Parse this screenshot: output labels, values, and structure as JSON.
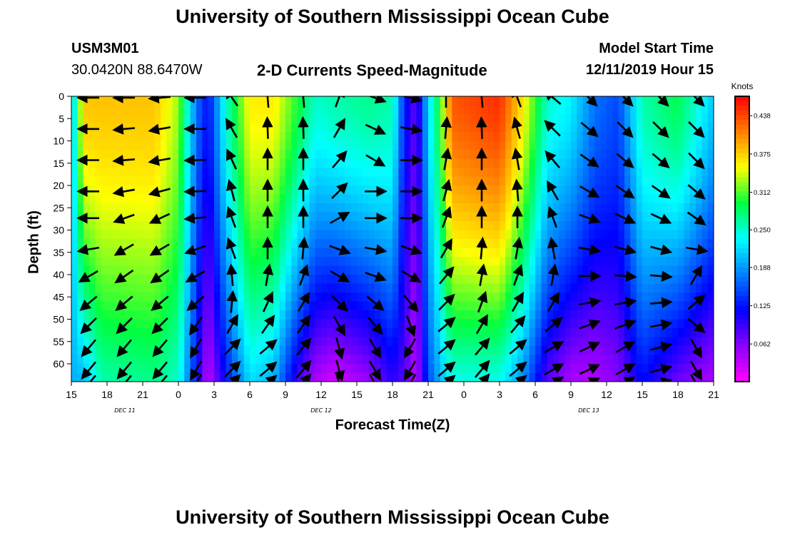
{
  "header": {
    "title": "University of Southern Mississippi Ocean Cube",
    "station_id": "USM3M01",
    "coordinates": "30.0420N 88.6470W",
    "subtitle": "2-D Currents Speed-Magnitude",
    "model_start_label": "Model Start Time",
    "model_start_value": "12/11/2019 Hour 15"
  },
  "footer": {
    "title": "University of Southern Mississippi Ocean Cube"
  },
  "chart_data": {
    "type": "heatmap",
    "title": "2-D Currents Speed-Magnitude",
    "xlabel": "Forecast Time(Z)",
    "ylabel": "Depth (ft)",
    "x_tick_labels": [
      "15",
      "18",
      "21",
      "0",
      "3",
      "6",
      "9",
      "12",
      "15",
      "18",
      "21",
      "0",
      "3",
      "6",
      "9",
      "12",
      "15",
      "18",
      "21"
    ],
    "x_day_labels": [
      {
        "label": "DEC 11",
        "tick_index": 1.5
      },
      {
        "label": "DEC 12",
        "tick_index": 7
      },
      {
        "label": "DEC 13",
        "tick_index": 14.5
      }
    ],
    "y_ticks": [
      0,
      5,
      10,
      15,
      20,
      25,
      30,
      35,
      40,
      45,
      50,
      55,
      60
    ],
    "ylim": [
      0,
      64
    ],
    "colorbar": {
      "unit": "Knots",
      "ticks": [
        "0.438",
        "0.375",
        "0.312",
        "0.250",
        "0.188",
        "0.125",
        "0.062"
      ],
      "tick_values": [
        0.438,
        0.375,
        0.312,
        0.25,
        0.188,
        0.125,
        0.062
      ],
      "range": [
        0.0,
        0.47
      ],
      "colors": [
        "#ff00ff",
        "#8a00ff",
        "#0000ff",
        "#0080ff",
        "#00ffff",
        "#00ff40",
        "#ffff00",
        "#ff8000",
        "#ff0000"
      ]
    },
    "speed_model": {
      "x_range_hours": [
        0,
        54
      ],
      "column_profiles": [
        {
          "hour": 0,
          "surface": 0.2,
          "bottom": 0.2
        },
        {
          "hour": 1,
          "surface": 0.38,
          "bottom": 0.2
        },
        {
          "hour": 2.5,
          "surface": 0.38,
          "bottom": 0.26
        },
        {
          "hour": 7,
          "surface": 0.38,
          "bottom": 0.27
        },
        {
          "hour": 9,
          "surface": 0.33,
          "bottom": 0.25
        },
        {
          "hour": 10.5,
          "surface": 0.17,
          "bottom": 0.12
        },
        {
          "hour": 11.5,
          "surface": 0.12,
          "bottom": 0.03
        },
        {
          "hour": 13,
          "surface": 0.25,
          "bottom": 0.12
        },
        {
          "hour": 15,
          "surface": 0.36,
          "bottom": 0.22
        },
        {
          "hour": 17,
          "surface": 0.36,
          "bottom": 0.2
        },
        {
          "hour": 19,
          "surface": 0.3,
          "bottom": 0.09
        },
        {
          "hour": 20.5,
          "surface": 0.25,
          "bottom": 0.04
        },
        {
          "hour": 22,
          "surface": 0.26,
          "bottom": 0.02
        },
        {
          "hour": 25,
          "surface": 0.27,
          "bottom": 0.05
        },
        {
          "hour": 27,
          "surface": 0.26,
          "bottom": 0.1
        },
        {
          "hour": 28,
          "surface": 0.13,
          "bottom": 0.08
        },
        {
          "hour": 29,
          "surface": 0.07,
          "bottom": 0.03
        },
        {
          "hour": 30,
          "surface": 0.22,
          "bottom": 0.15
        },
        {
          "hour": 31,
          "surface": 0.3,
          "bottom": 0.2
        },
        {
          "hour": 32,
          "surface": 0.43,
          "bottom": 0.24
        },
        {
          "hour": 36,
          "surface": 0.45,
          "bottom": 0.24
        },
        {
          "hour": 38,
          "surface": 0.36,
          "bottom": 0.18
        },
        {
          "hour": 40,
          "surface": 0.25,
          "bottom": 0.08
        },
        {
          "hour": 42,
          "surface": 0.23,
          "bottom": 0.04
        },
        {
          "hour": 44,
          "surface": 0.17,
          "bottom": 0.04
        },
        {
          "hour": 46,
          "surface": 0.15,
          "bottom": 0.06
        },
        {
          "hour": 48,
          "surface": 0.26,
          "bottom": 0.12
        },
        {
          "hour": 51,
          "surface": 0.29,
          "bottom": 0.07
        },
        {
          "hour": 54,
          "surface": 0.21,
          "bottom": 0.04
        }
      ]
    },
    "vector_field": {
      "depth_rows": [
        0,
        7,
        14,
        21,
        27,
        34,
        40,
        46,
        51,
        56,
        61,
        64
      ],
      "columns": [
        {
          "hour": 1.5,
          "angles": [
            180,
            180,
            180,
            180,
            180,
            170,
            150,
            140,
            135,
            130,
            130,
            130
          ]
        },
        {
          "hour": 4.5,
          "angles": [
            180,
            175,
            175,
            170,
            160,
            150,
            145,
            140,
            135,
            130,
            130,
            130
          ]
        },
        {
          "hour": 7.5,
          "angles": [
            175,
            170,
            170,
            165,
            155,
            150,
            145,
            140,
            135,
            130,
            130,
            130
          ]
        },
        {
          "hour": 10.5,
          "angles": [
            180,
            180,
            178,
            178,
            175,
            160,
            150,
            140,
            125,
            120,
            120,
            120
          ]
        },
        {
          "hour": 13.5,
          "angles": [
            235,
            240,
            245,
            255,
            250,
            250,
            265,
            275,
            300,
            315,
            315,
            315
          ]
        },
        {
          "hour": 16.5,
          "angles": [
            265,
            268,
            270,
            270,
            270,
            270,
            280,
            295,
            305,
            320,
            320,
            320
          ]
        },
        {
          "hour": 19.5,
          "angles": [
            265,
            268,
            270,
            270,
            270,
            275,
            290,
            300,
            305,
            310,
            310,
            310
          ]
        },
        {
          "hour": 22.5,
          "angles": [
            290,
            300,
            310,
            315,
            330,
            20,
            30,
            45,
            60,
            75,
            75,
            75
          ]
        },
        {
          "hour": 25.5,
          "angles": [
            20,
            25,
            30,
            0,
            0,
            10,
            20,
            40,
            50,
            60,
            60,
            60
          ]
        },
        {
          "hour": 28.5,
          "angles": [
            15,
            10,
            0,
            0,
            0,
            20,
            30,
            50,
            70,
            120,
            120,
            120
          ]
        },
        {
          "hour": 31.5,
          "angles": [
            270,
            275,
            280,
            285,
            290,
            300,
            310,
            315,
            320,
            320,
            320,
            320
          ]
        },
        {
          "hour": 34.5,
          "angles": [
            265,
            268,
            270,
            270,
            270,
            275,
            280,
            290,
            300,
            310,
            310,
            310
          ]
        },
        {
          "hour": 37.5,
          "angles": [
            250,
            255,
            260,
            265,
            270,
            280,
            290,
            300,
            310,
            320,
            320,
            320
          ]
        },
        {
          "hour": 40.5,
          "angles": [
            220,
            225,
            230,
            240,
            250,
            260,
            280,
            300,
            320,
            330,
            330,
            330
          ]
        },
        {
          "hour": 43.5,
          "angles": [
            45,
            40,
            35,
            30,
            20,
            10,
            0,
            350,
            340,
            335,
            335,
            335
          ]
        },
        {
          "hour": 46.5,
          "angles": [
            45,
            45,
            40,
            35,
            25,
            15,
            5,
            350,
            340,
            330,
            330,
            330
          ]
        },
        {
          "hour": 49.5,
          "angles": [
            45,
            45,
            40,
            35,
            25,
            15,
            5,
            355,
            350,
            345,
            345,
            345
          ]
        },
        {
          "hour": 52.5,
          "angles": [
            45,
            45,
            45,
            40,
            35,
            10,
            300,
            320,
            40,
            60,
            60,
            60
          ]
        }
      ],
      "angle_convention": "degrees clockwise from east, screen space"
    }
  }
}
